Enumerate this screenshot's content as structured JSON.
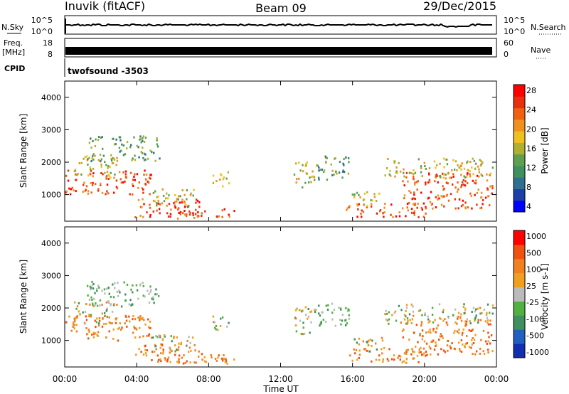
{
  "header": {
    "station": "Inuvik (fitACF)",
    "beam": "Beam 09",
    "date": "29/Dec/2015"
  },
  "noise_panel": {
    "left_label": "N.Sky",
    "right_label": "N.Search",
    "left_ticks": [
      "10^5",
      "10^0"
    ],
    "right_ticks": [
      "10^5",
      "10^0"
    ]
  },
  "freq_panel": {
    "left_label": "Freq.",
    "left_unit": "[MHz]",
    "right_label": "Nave",
    "left_ticks": [
      "18",
      "8"
    ],
    "right_ticks": [
      "60",
      "0"
    ]
  },
  "cpid": {
    "label": "CPID",
    "value": "twofsound -3503"
  },
  "chart_data": [
    {
      "type": "heatmap",
      "name": "power",
      "ylabel": "Slant Range [km]",
      "colorbar_label": "Power [dB]",
      "ylim": [
        180,
        4500
      ],
      "yticks": [
        "4000",
        "3000",
        "2000",
        "1000"
      ],
      "colorbar_ticks": [
        "28",
        "24",
        "20",
        "16",
        "12",
        "8",
        "4"
      ],
      "colors": [
        "#0000ff",
        "#1f3fa8",
        "#2f6f8f",
        "#3f8f5f",
        "#5fa050",
        "#b0b030",
        "#f0c020",
        "#f09020",
        "#f06010",
        "#e83010",
        "#ff0000"
      ]
    },
    {
      "type": "heatmap",
      "name": "velocity",
      "ylabel": "Slant Range [km]",
      "colorbar_label": "Velocity [m s-1]",
      "ylim": [
        180,
        4500
      ],
      "yticks": [
        "4000",
        "3000",
        "2000",
        "1000"
      ],
      "colorbar_ticks": [
        "1000",
        "500",
        "100",
        "25",
        "-25",
        "-100",
        "-500",
        "-1000"
      ],
      "colors": [
        "#1030b0",
        "#2060c0",
        "#3f8f5f",
        "#50b040",
        "#bbbbbb",
        "#f0a020",
        "#f08020",
        "#f05010",
        "#ff0000"
      ]
    }
  ],
  "xaxis": {
    "label": "Time UT",
    "ticks": [
      "00:00",
      "04:00",
      "08:00",
      "12:00",
      "16:00",
      "20:00",
      "00:00"
    ]
  }
}
